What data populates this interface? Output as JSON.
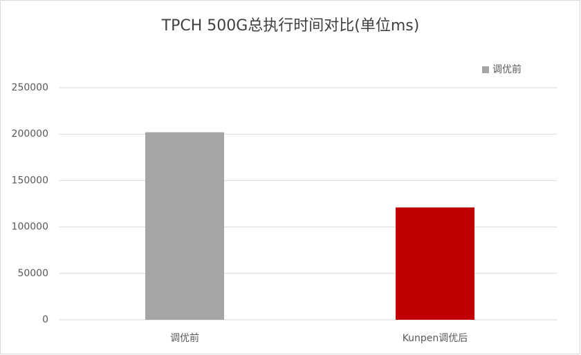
{
  "chart_data": {
    "type": "bar",
    "title": "TPCH 500G总执行时间对比(单位ms)",
    "categories": [
      "调优前",
      "Kunpen调优后"
    ],
    "series": [
      {
        "name": "调优前",
        "color": "#a5a5a5",
        "values": [
          202000,
          121000
        ]
      }
    ],
    "bar_colors": [
      "#a5a5a5",
      "#c00000"
    ],
    "ylim": [
      0,
      250000
    ],
    "yticks": [
      0,
      50000,
      100000,
      150000,
      200000,
      250000
    ],
    "grid": true,
    "legend": "top-right"
  }
}
